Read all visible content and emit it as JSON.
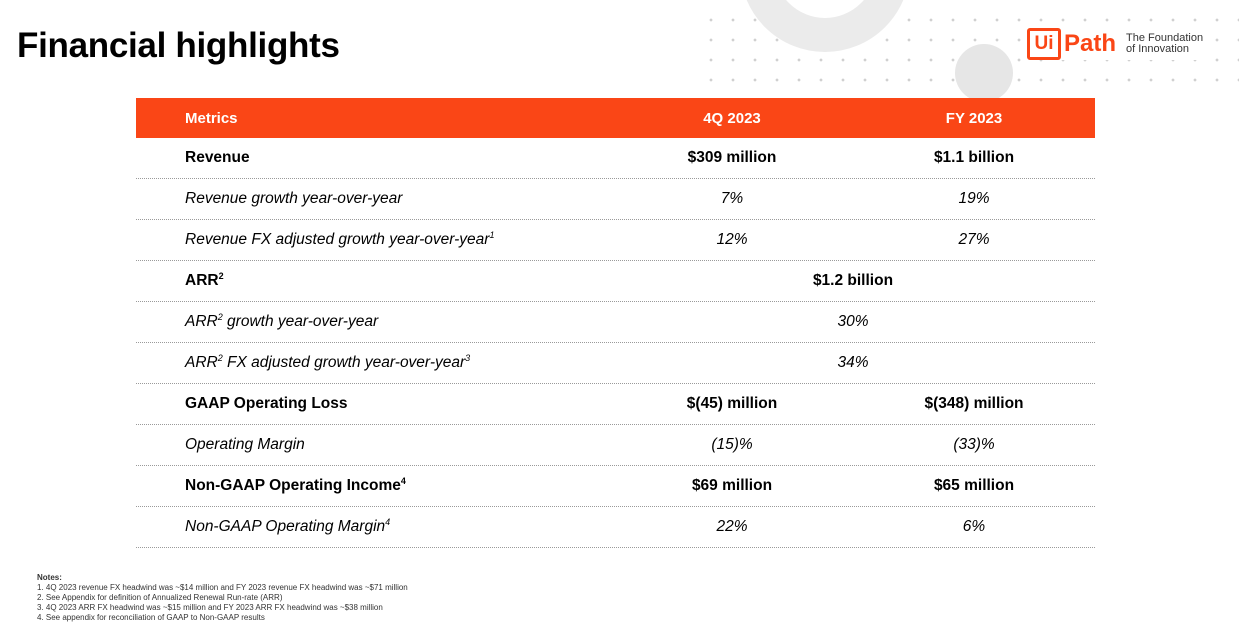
{
  "title": "Financial highlights",
  "logo": {
    "mark": "Ui",
    "name": "Path",
    "tagline_1": "The Foundation",
    "tagline_2": "of Innovation"
  },
  "colors": {
    "accent": "#fa4616"
  },
  "table": {
    "headers": {
      "metric": "Metrics",
      "q4": "4Q 2023",
      "fy": "FY 2023"
    },
    "rows": [
      {
        "label": "Revenue",
        "sup": "",
        "q4": "$309 million",
        "fy": "$1.1 billion"
      },
      {
        "label": "Revenue growth year-over-year",
        "sup": "",
        "q4": "7%",
        "fy": "19%"
      },
      {
        "label": "Revenue FX adjusted growth year-over-year",
        "sup": "1",
        "q4": "12%",
        "fy": "27%"
      },
      {
        "label": "ARR",
        "sup": "2",
        "value": "$1.2 billion"
      },
      {
        "label_pre": "ARR",
        "sup": "2",
        "label_post": " growth year-over-year",
        "value": "30%"
      },
      {
        "label_pre": "ARR",
        "sup": "2",
        "label_post": " FX adjusted growth year-over-year",
        "sup2": "3",
        "value": "34%"
      },
      {
        "label": "GAAP Operating Loss",
        "sup": "",
        "q4": "$(45) million",
        "fy": "$(348) million"
      },
      {
        "label": "Operating Margin",
        "sup": "",
        "q4": "(15)%",
        "fy": "(33)%"
      },
      {
        "label": "Non-GAAP Operating Income",
        "sup": "4",
        "q4": "$69 million",
        "fy": "$65 million"
      },
      {
        "label": "Non-GAAP Operating Margin",
        "sup": "4",
        "q4": "22%",
        "fy": "6%"
      }
    ]
  },
  "notes": {
    "heading": "Notes:",
    "items": [
      "1. 4Q 2023 revenue FX headwind was ~$14 million  and FY 2023 revenue FX headwind was ~$71 million",
      "2. See Appendix for definition of Annualized Renewal Run-rate (ARR)",
      "3. 4Q 2023 ARR FX headwind was ~$15 million and FY 2023 ARR FX headwind was ~$38 million",
      "4. See appendix for reconciliation of GAAP to Non-GAAP results"
    ]
  }
}
